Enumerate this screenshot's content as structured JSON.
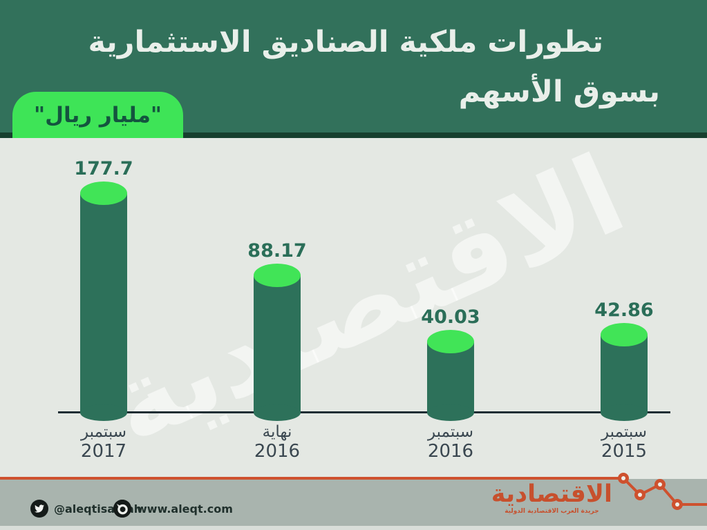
{
  "header": {
    "title_line1": "تطورات ملكية الصناديق الاستثمارية",
    "title_line2": "بسوق الأسهم",
    "unit_badge": "\"مليار ريال\""
  },
  "watermark_text": "الاقتصادية",
  "chart_data": {
    "type": "bar",
    "style": "3d-cylinder-columns",
    "title": "تطورات ملكية الصناديق الاستثمارية بسوق الأسهم",
    "unit": "مليار ريال",
    "categories": [
      "سبتمبر 2017",
      "نهاية 2016",
      "سبتمبر 2016",
      "سبتمبر 2015"
    ],
    "values": [
      177.7,
      88.17,
      40.03,
      42.86
    ],
    "bars": [
      {
        "value_label": "177.7",
        "cat_line1": "سبتمبر",
        "cat_line2": "2017"
      },
      {
        "value_label": "88.17",
        "cat_line1": "نهاية",
        "cat_line2": "2016"
      },
      {
        "value_label": "40.03",
        "cat_line1": "سبتمبر",
        "cat_line2": "2016"
      },
      {
        "value_label": "42.86",
        "cat_line1": "سبتمبر",
        "cat_line2": "2015"
      }
    ],
    "xlabel": "",
    "ylabel": "",
    "value_axis_visible": false,
    "grid": false,
    "legend": false
  },
  "footer": {
    "twitter_handle": "@aleqtisadiah",
    "website": "www.aleqt.com",
    "brand_name": "الاقتصادية",
    "brand_tagline": "جريدة العرب الاقتصادية الدولية"
  },
  "colors": {
    "header_green": "#32715B",
    "header_strip": "#17402F",
    "chart_bg": "#E4E8E3",
    "cylinder_body": "#2D715A",
    "cylinder_top": "#41E457",
    "badge_green": "#3EE457",
    "badge_text": "#14543F",
    "value_text": "#2A6E58",
    "axis_line": "#1F2D33",
    "x_label_text": "#3A4750",
    "footer_bg": "#A9B4AE",
    "footer_text": "#20302C",
    "brand_orange": "#C7502D",
    "deco_orange": "#CE512E",
    "title_text": "#E9EFEA"
  }
}
